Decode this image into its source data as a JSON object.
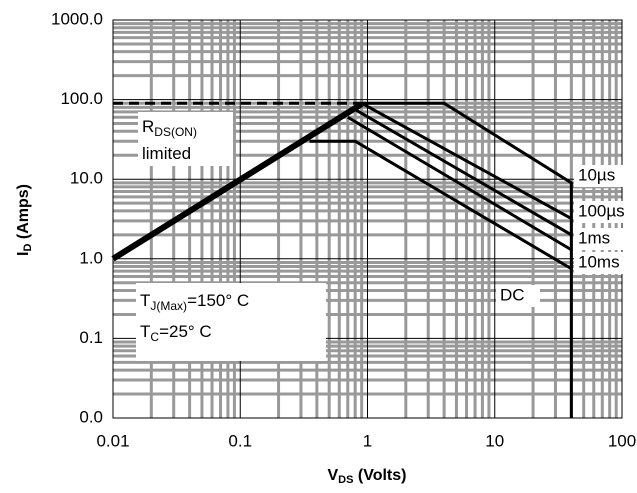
{
  "chart_data": {
    "type": "line",
    "ylabel": [
      "I",
      "D",
      " (Amps)"
    ],
    "xlabel": [
      "V",
      "DS",
      " (Volts)"
    ],
    "log_x": true,
    "log_y": true,
    "grid": true,
    "xlim": [
      0.01,
      100
    ],
    "xticks": [
      0.01,
      0.1,
      1,
      10,
      100
    ],
    "ylim": [
      0.01,
      1000
    ],
    "yticks": [
      {
        "value": 0.01,
        "label": "0.0"
      },
      0.1,
      {
        "value": 1,
        "label": "1.0"
      },
      {
        "value": 10,
        "label": "10.0"
      },
      {
        "value": 100,
        "label": "100.0"
      },
      {
        "value": 1000,
        "label": "1000.0"
      }
    ],
    "series": [
      {
        "color": "#000000",
        "width": 6,
        "x": [
          0.01,
          0.9
        ],
        "values": [
          1,
          88
        ]
      },
      {
        "color": "#000000",
        "width": 3,
        "dashed": true,
        "x": [
          0.01,
          0.9
        ],
        "values": [
          90,
          90
        ]
      },
      {
        "name": "10µs",
        "color": "#000000",
        "width": 3,
        "x": [
          0.9,
          4,
          40,
          40
        ],
        "values": [
          90,
          90,
          9,
          0.01
        ]
      },
      {
        "name": "100µs",
        "color": "#000000",
        "width": 3,
        "x": [
          0.9,
          40
        ],
        "values": [
          90,
          3.2
        ]
      },
      {
        "name": "1ms",
        "color": "#000000",
        "width": 3,
        "x": [
          0.8,
          40
        ],
        "values": [
          75,
          2
        ]
      },
      {
        "name": "10ms",
        "color": "#000000",
        "width": 3,
        "x": [
          0.7,
          40
        ],
        "values": [
          60,
          1.3
        ]
      },
      {
        "name": "DC",
        "color": "#000000",
        "width": 3,
        "x": [
          0.35,
          0.8,
          40
        ],
        "values": [
          30,
          30,
          0.75
        ]
      }
    ],
    "annotations": [
      {
        "lines": [
          [
            "R",
            "DS(ON)"
          ],
          [
            "limited"
          ]
        ]
      },
      {
        "lines": [
          [
            "T",
            "J(Max)",
            "=150°  C"
          ],
          [
            "T",
            "C",
            "=25°  C"
          ]
        ]
      }
    ]
  }
}
